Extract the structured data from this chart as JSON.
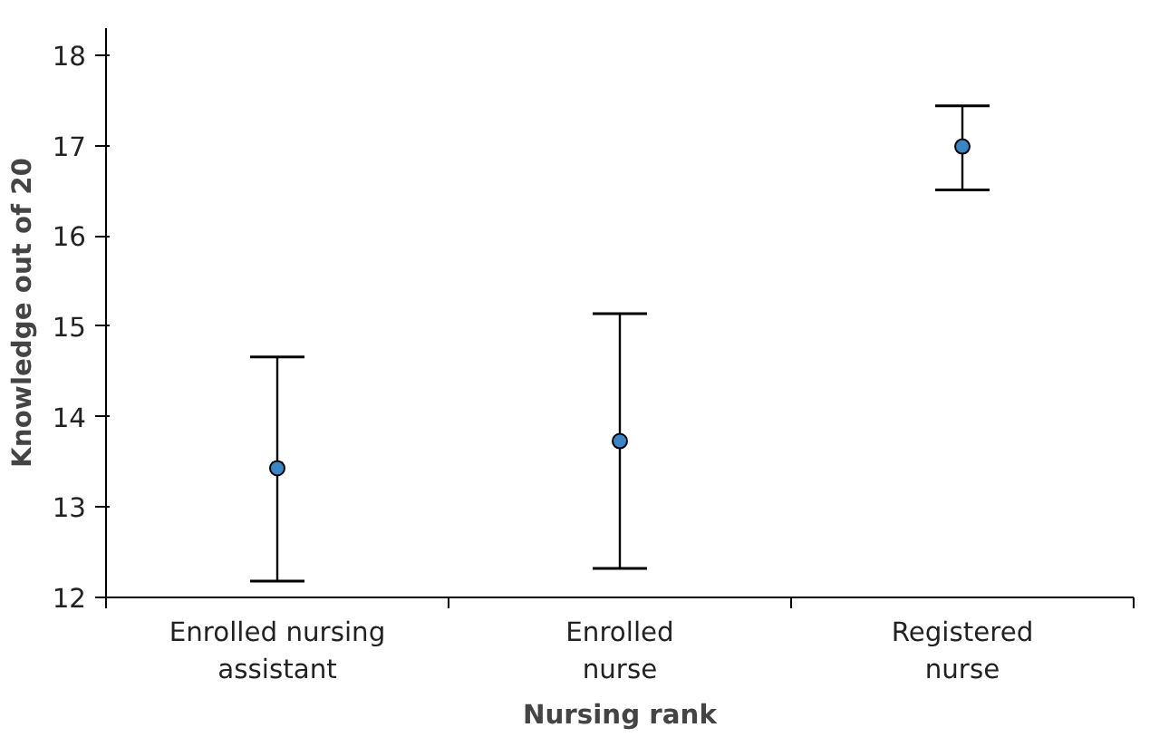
{
  "chart_data": {
    "type": "scatter",
    "xlabel": "Nursing rank",
    "ylabel": "Knowledge out of 20",
    "categories": [
      "Enrolled nursing\nassistant",
      "Enrolled\nnurse",
      "Registered\nnurse"
    ],
    "series": [
      {
        "color": "#3a85c6",
        "values": [
          13.43,
          13.73,
          16.99
        ],
        "errors": [
          [
            12.18,
            14.66
          ],
          [
            12.32,
            15.14
          ],
          [
            16.51,
            17.44
          ]
        ]
      }
    ],
    "ylim": [
      12,
      18.3
    ],
    "yticks": [
      12,
      13,
      14,
      15,
      16,
      17,
      18
    ],
    "grid": false,
    "marker": "circle"
  }
}
